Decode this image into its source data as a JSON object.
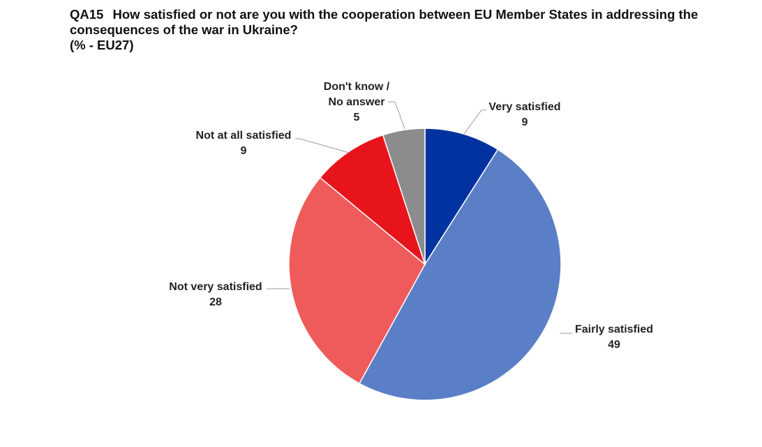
{
  "header": {
    "question_id": "QA15",
    "question_text_line1": "How satisfied or not are you with the cooperation between EU Member States in addressing the",
    "question_text_line2": "consequences of the war in Ukraine?",
    "subtitle": "(% - EU27)"
  },
  "chart_data": {
    "type": "pie",
    "title": "QA15 How satisfied or not are you with the cooperation between EU Member States in addressing the consequences of the war in Ukraine?",
    "subtitle": "(% - EU27)",
    "unit": "%",
    "slices": [
      {
        "label": "Very satisfied",
        "value": 9,
        "color": "#0033A0"
      },
      {
        "label": "Fairly satisfied",
        "value": 49,
        "color": "#5B7FC7"
      },
      {
        "label": "Not very satisfied",
        "value": 28,
        "color": "#EF5B5B"
      },
      {
        "label": "Not at all satisfied",
        "value": 9,
        "color": "#E8141C"
      },
      {
        "label": "Don't know / No answer",
        "label_lines": [
          "Don't know /",
          "No answer"
        ],
        "value": 5,
        "color": "#8C8C8C"
      }
    ]
  }
}
